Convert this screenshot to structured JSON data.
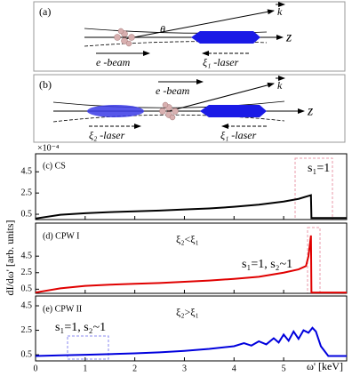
{
  "diagrams": {
    "a": {
      "label": "(a)",
      "k": "k",
      "theta": "θ",
      "z": "z",
      "beam": "e -beam",
      "laser": "ξ₁ -laser"
    },
    "b": {
      "label": "(b)",
      "k": "k",
      "z": "z",
      "beam": "e -beam",
      "laser2": "ξ₂ -laser",
      "laser1": "ξ₁ -laser"
    }
  },
  "chart_data": [
    {
      "type": "line",
      "title": "(c) CS",
      "annotation": "s₁=1",
      "multiplier": "×10⁻⁴",
      "color": "#000000",
      "x": [
        0,
        0.5,
        1,
        1.5,
        2,
        2.5,
        3,
        3.5,
        4,
        4.5,
        5,
        5.3,
        5.55,
        5.56,
        6.27
      ],
      "values": [
        0.1,
        0.45,
        0.6,
        0.7,
        0.78,
        0.85,
        0.95,
        1.05,
        1.2,
        1.4,
        1.7,
        1.95,
        2.3,
        0.15,
        0.15
      ],
      "ylim": [
        0,
        6.2
      ],
      "yticks": [
        0.5,
        2.5,
        4.5
      ]
    },
    {
      "type": "line",
      "title": "(d) CPW I",
      "note": "ξ₂<ξ₁",
      "annotation": "s₁=1, s₂~1",
      "ylabel": "dI/dω' [arb. units]",
      "color": "#e00000",
      "x": [
        0,
        0.5,
        1,
        1.5,
        2,
        2.5,
        3,
        3.5,
        4,
        4.5,
        5,
        5.3,
        5.45,
        5.5,
        5.55,
        5.56,
        6.27
      ],
      "values": [
        0.1,
        0.6,
        0.9,
        1.05,
        1.15,
        1.25,
        1.4,
        1.55,
        1.75,
        2.0,
        2.5,
        2.9,
        3.3,
        4.5,
        7.0,
        0.1,
        0.1
      ],
      "ylim": [
        0,
        8.5
      ],
      "yticks": [
        0.5,
        2.5,
        4.5
      ]
    },
    {
      "type": "line",
      "title": "(e) CPW II",
      "note": "ξ₂>ξ₁",
      "annotation": "s₁=1, s₂~1",
      "xlabel": "ω' [keV]",
      "color": "#0000dd",
      "x": [
        0,
        0.5,
        1,
        1.5,
        2,
        2.5,
        3,
        3.5,
        4,
        4.2,
        4.35,
        4.5,
        4.65,
        4.8,
        4.9,
        5.0,
        5.1,
        5.2,
        5.3,
        5.4,
        5.5,
        5.58,
        5.65,
        5.75,
        5.9,
        6.27
      ],
      "values": [
        0.4,
        0.45,
        0.5,
        0.55,
        0.62,
        0.7,
        0.82,
        0.98,
        1.2,
        1.45,
        1.25,
        1.6,
        1.35,
        1.85,
        1.5,
        2.15,
        1.65,
        2.4,
        1.8,
        2.5,
        2.3,
        2.7,
        2.4,
        1.2,
        0.4,
        0.4
      ],
      "ylim": [
        0,
        5.3
      ],
      "yticks": [
        0.5,
        2.5,
        4.5
      ],
      "xlim": [
        0,
        6.27
      ],
      "xticks": [
        0,
        1,
        2,
        3,
        4,
        5
      ]
    }
  ]
}
